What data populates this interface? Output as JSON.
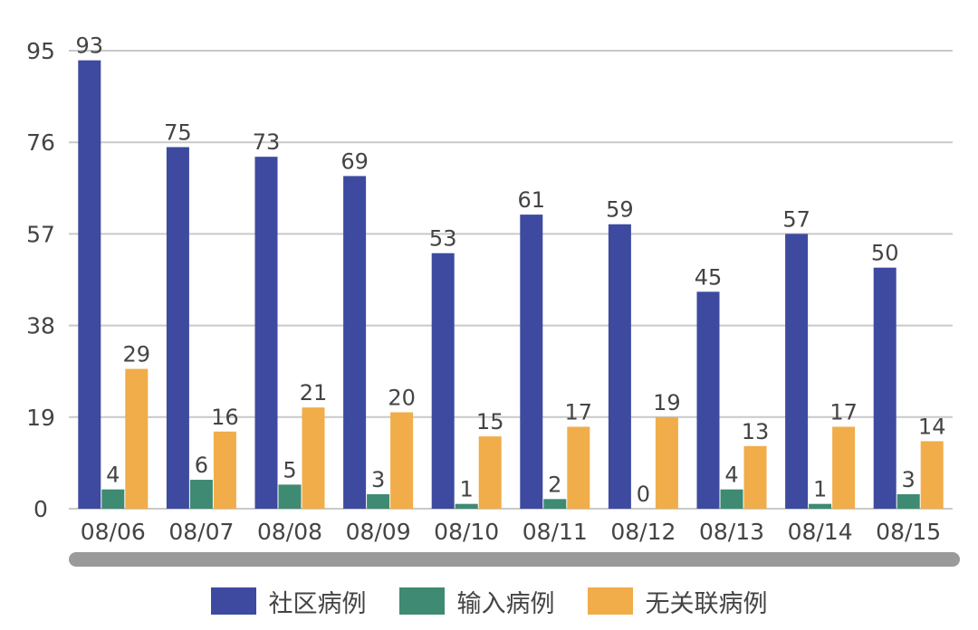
{
  "chart_data": {
    "type": "bar",
    "title": "",
    "xlabel": "",
    "ylabel": "",
    "ylim": [
      0,
      95
    ],
    "yticks": [
      0,
      19,
      38,
      57,
      76,
      95
    ],
    "grid": true,
    "legend_position": "bottom",
    "categories": [
      "08/06",
      "08/07",
      "08/08",
      "08/09",
      "08/10",
      "08/11",
      "08/12",
      "08/13",
      "08/14",
      "08/15"
    ],
    "series": [
      {
        "name": "社区病例",
        "color": "#3d4aa0",
        "values": [
          93,
          75,
          73,
          69,
          53,
          61,
          59,
          45,
          57,
          50
        ]
      },
      {
        "name": "输入病例",
        "color": "#3e8a73",
        "values": [
          4,
          6,
          5,
          3,
          1,
          2,
          0,
          4,
          1,
          3
        ]
      },
      {
        "name": "无关联病例",
        "color": "#f0ad4a",
        "values": [
          29,
          16,
          21,
          20,
          15,
          17,
          19,
          13,
          17,
          14
        ]
      }
    ]
  }
}
